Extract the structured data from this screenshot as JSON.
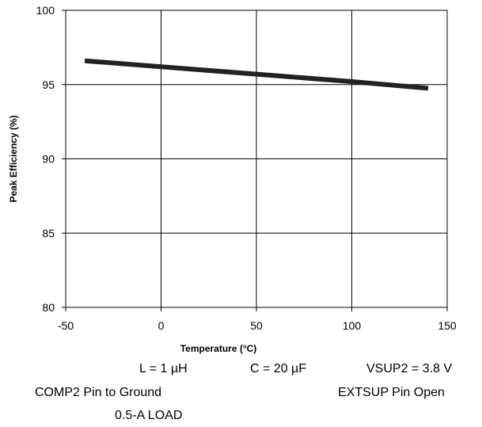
{
  "chart_data": {
    "type": "line",
    "xlabel": "Temperature (°C)",
    "ylabel": "Peak Efficiency (%)",
    "xlim": [
      -50,
      150
    ],
    "ylim": [
      80,
      100
    ],
    "x_ticks": [
      "-50",
      "0",
      "50",
      "100",
      "150"
    ],
    "y_ticks": [
      "80",
      "85",
      "90",
      "95",
      "100"
    ],
    "grid": true,
    "series": [
      {
        "x": [
          -40,
          0,
          50,
          100,
          140
        ],
        "y": [
          96.6,
          96.2,
          95.7,
          95.2,
          94.75
        ]
      }
    ]
  },
  "conditions": {
    "inductance": "L = 1 µH",
    "capacitance": "C = 20 µF",
    "vsup2": "VSUP2 = 3.8 V",
    "comp2": "COMP2 Pin to Ground",
    "extsup": "EXTSUP Pin Open",
    "load": "0.5-A LOAD"
  }
}
